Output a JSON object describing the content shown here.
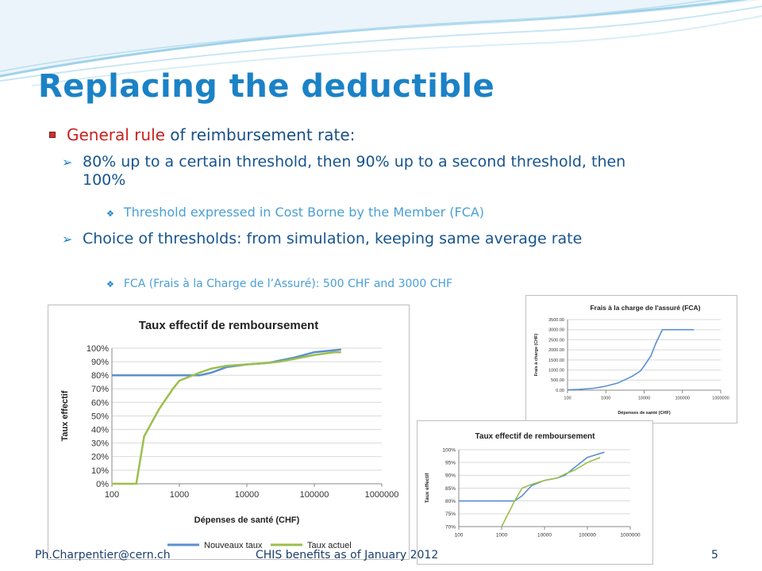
{
  "slide": {
    "title": "Replacing the deductible",
    "bullets": {
      "rule_red": "General rule",
      "rule_rest": " of reimbursement rate:",
      "point1": "80% up to a certain threshold, then 90% up to a second threshold, then 100%",
      "point1_sub": "Threshold expressed in Cost Borne by the Member (FCA)",
      "point2": "Choice of thresholds: from simulation, keeping same average rate",
      "point2_sub": "FCA (Frais à la Charge de l’Assuré): 500 CHF and 3000 CHF"
    },
    "icons": {
      "level1": "square-bullet-icon",
      "level2": "arrow-bullet-icon",
      "level3": "diamond-bullet-icon"
    },
    "colors": {
      "title": "#1b82c6",
      "accent": "#cc1f1f",
      "series_new": "#5b8fd0",
      "series_current": "#9bbf4c"
    },
    "footer": {
      "email": "Ph.Charpentier@cern.ch",
      "center": "CHIS benefits as of January 2012",
      "page": "5"
    }
  },
  "chart_data": [
    {
      "type": "line",
      "title": "Taux effectif de remboursement",
      "xlabel": "Dépenses de santé (CHF)",
      "ylabel": "Taux effectif",
      "xscale": "log",
      "xlim": [
        100,
        1000000
      ],
      "ylim": [
        0,
        100
      ],
      "xticks": [
        "100",
        "1000",
        "10000",
        "100000",
        "1000000"
      ],
      "yticks": [
        "0%",
        "10%",
        "20%",
        "30%",
        "40%",
        "50%",
        "60%",
        "70%",
        "80%",
        "90%",
        "100%"
      ],
      "legend": "bottom",
      "grid": true,
      "series": [
        {
          "name": "Nouveaux taux",
          "x": [
            100,
            300,
            500,
            1000,
            2000,
            3000,
            5000,
            10000,
            20000,
            50000,
            100000,
            250000
          ],
          "y": [
            80,
            80,
            80,
            80,
            80,
            82,
            86,
            88,
            89,
            93,
            97,
            99
          ]
        },
        {
          "name": "Taux actuel",
          "x": [
            100,
            200,
            230,
            300,
            500,
            800,
            1000,
            2000,
            3000,
            5000,
            10000,
            20000,
            30000,
            50000,
            100000,
            200000,
            250000
          ],
          "y": [
            0,
            0,
            0,
            35,
            55,
            70,
            76,
            82,
            85,
            87,
            88,
            89,
            90,
            92,
            95,
            97,
            97
          ]
        }
      ]
    },
    {
      "type": "line",
      "title": "Frais à la charge de l'assuré (FCA)",
      "xlabel": "Dépenses de santé (CHF)",
      "ylabel": "Frais à charge (CHF)",
      "xscale": "log",
      "xlim": [
        100,
        1000000
      ],
      "ylim": [
        0,
        3500
      ],
      "xticks": [
        "100",
        "1000",
        "10000",
        "100000",
        "1000000"
      ],
      "yticks": [
        "0.00",
        "500.00",
        "1000.00",
        "1500.00",
        "2000.00",
        "2500.00",
        "3000.00",
        "3500.00"
      ],
      "grid": true,
      "series": [
        {
          "x": [
            100,
            200,
            500,
            1000,
            2000,
            3000,
            5000,
            8000,
            10000,
            15000,
            20000,
            30000,
            50000,
            100000,
            200000
          ],
          "y": [
            20,
            40,
            100,
            200,
            350,
            500,
            700,
            950,
            1200,
            1700,
            2300,
            3000,
            3000,
            3000,
            3000
          ]
        }
      ]
    },
    {
      "type": "line",
      "title": "Taux effectif de remboursement",
      "xlabel": "",
      "ylabel": "Taux effectif",
      "xscale": "log",
      "xlim": [
        100,
        1000000
      ],
      "ylim": [
        70,
        100
      ],
      "xticks": [
        "100",
        "1000",
        "10000",
        "100000",
        "1000000"
      ],
      "yticks": [
        "70%",
        "75%",
        "80%",
        "85%",
        "90%",
        "95%",
        "100%"
      ],
      "grid": true,
      "series": [
        {
          "x": [
            100,
            1000,
            2000,
            3000,
            5000,
            10000,
            20000,
            30000,
            50000,
            100000,
            250000
          ],
          "y": [
            80,
            80,
            80,
            82,
            86,
            88,
            89,
            90,
            93,
            97,
            99
          ]
        },
        {
          "x": [
            1000,
            2000,
            3000,
            5000,
            10000,
            20000,
            30000,
            50000,
            100000,
            200000
          ],
          "y": [
            70,
            80,
            85,
            86.5,
            88,
            89,
            90.5,
            92,
            95,
            97
          ]
        }
      ]
    }
  ]
}
